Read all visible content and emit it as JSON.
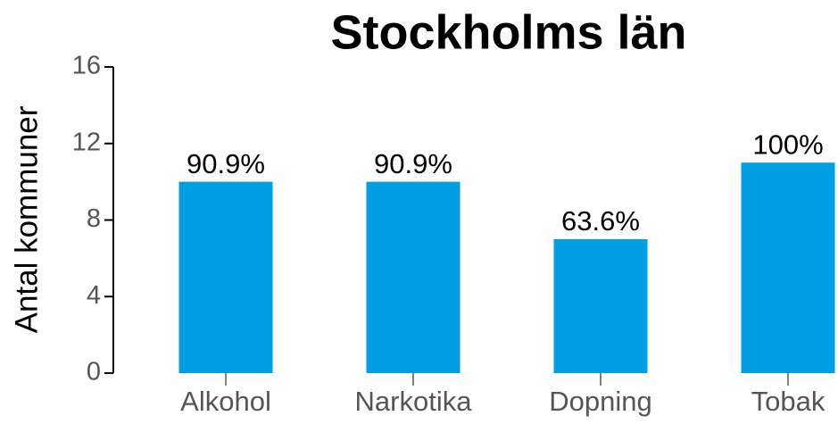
{
  "chart_data": {
    "type": "bar",
    "title": "Stockholms län",
    "ylabel": "Antal kommuner",
    "categories": [
      "Alkohol",
      "Narkotika",
      "Dopning",
      "Tobak"
    ],
    "values": [
      10,
      10,
      7,
      11
    ],
    "bar_labels": [
      "90.9%",
      "90.9%",
      "63.6%",
      "100%"
    ],
    "color": "#009fe3",
    "ylim": [
      0,
      16
    ],
    "yticks": [
      0,
      4,
      8,
      12,
      16
    ],
    "grid": false
  }
}
